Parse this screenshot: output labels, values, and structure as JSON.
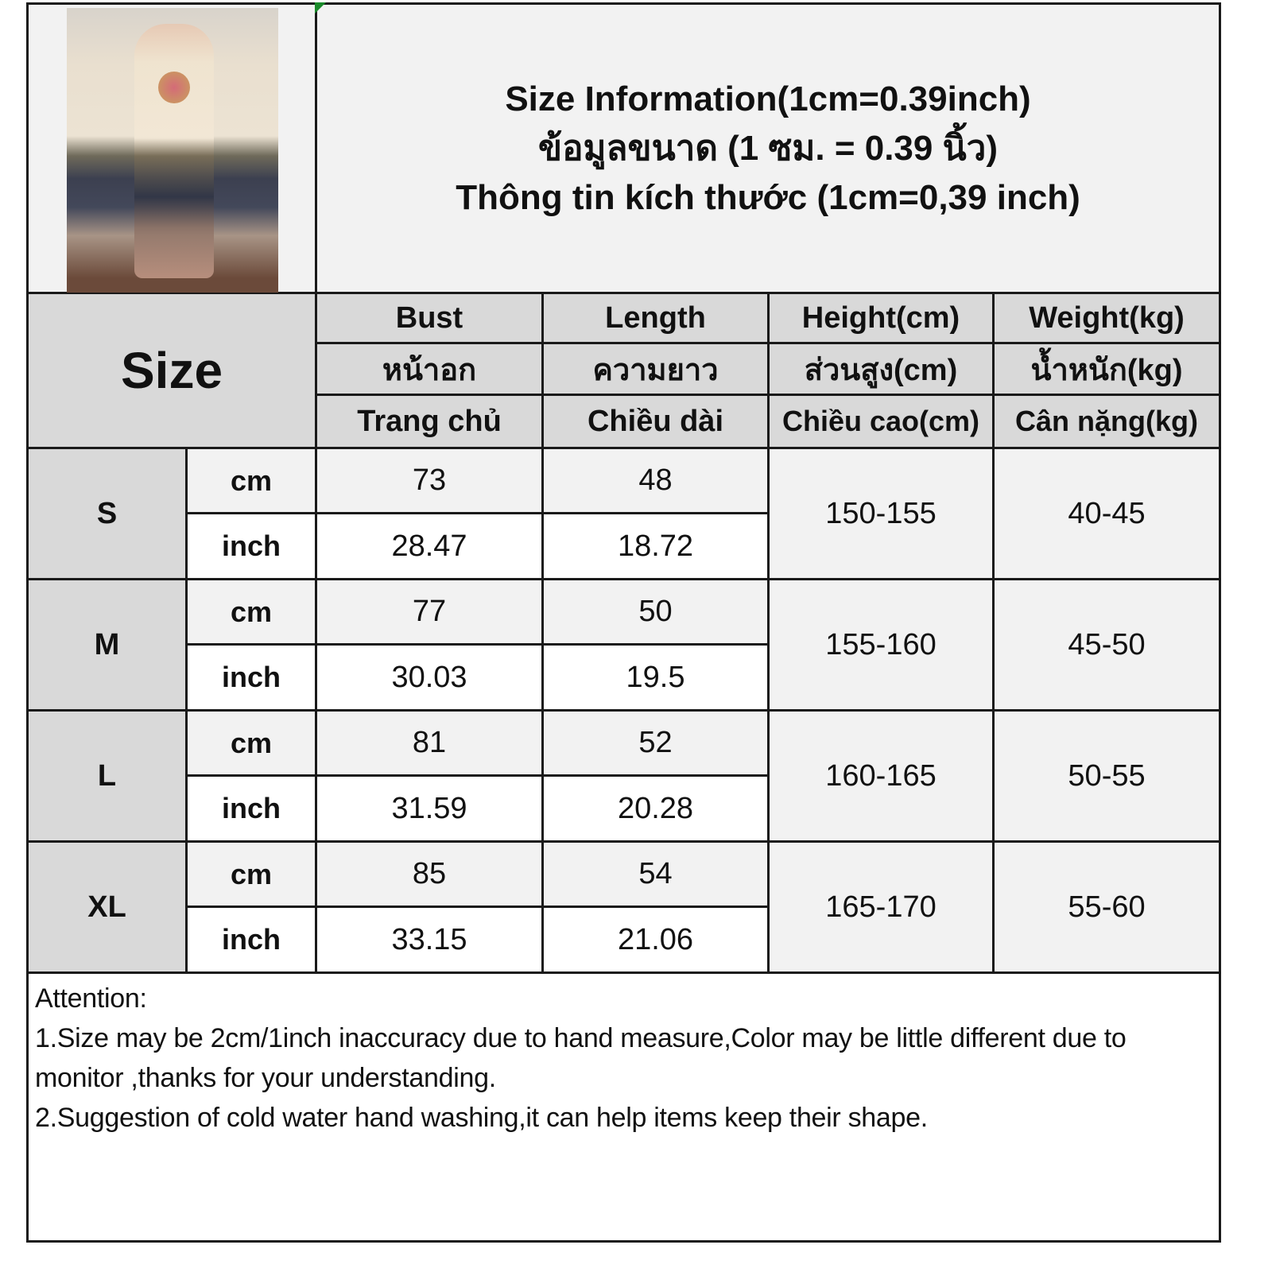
{
  "title_lines": [
    "Size Information(1cm=0.39inch)",
    "ข้อมูลขนาด (1 ซม. = 0.39 นิ้ว)",
    "Thông tin kích thước (1cm=0,39 inch)"
  ],
  "size_header": "Size",
  "columns": [
    {
      "en": "Bust",
      "th": "หน้าอก",
      "vi": "Trang chủ"
    },
    {
      "en": "Length",
      "th": "ความยาว",
      "vi": "Chiều dài"
    },
    {
      "en": "Height(cm)",
      "th": "ส่วนสูง(cm)",
      "vi": "Chiều cao(cm)"
    },
    {
      "en": "Weight(kg)",
      "th": "น้ำหนัก(kg)",
      "vi": "Cân nặng(kg)"
    }
  ],
  "units": {
    "cm": "cm",
    "inch": "inch"
  },
  "rows": [
    {
      "size": "S",
      "bust_cm": "73",
      "length_cm": "48",
      "bust_in": "28.47",
      "length_in": "18.72",
      "height": "150-155",
      "weight": "40-45"
    },
    {
      "size": "M",
      "bust_cm": "77",
      "length_cm": "50",
      "bust_in": "30.03",
      "length_in": "19.5",
      "height": "155-160",
      "weight": "45-50"
    },
    {
      "size": "L",
      "bust_cm": "81",
      "length_cm": "52",
      "bust_in": "31.59",
      "length_in": "20.28",
      "height": "160-165",
      "weight": "50-55"
    },
    {
      "size": "XL",
      "bust_cm": "85",
      "length_cm": "54",
      "bust_in": "33.15",
      "length_in": "21.06",
      "height": "165-170",
      "weight": "55-60"
    }
  ],
  "notes": {
    "heading": "Attention:",
    "line1": "1.Size may be 2cm/1inch inaccuracy due to hand measure,Color may be little different due to monitor ,thanks for your understanding.",
    "line2": "2.Suggestion of cold water hand washing,it can help items keep their shape."
  },
  "colors": {
    "header_gray": "#d9d9d9",
    "light_gray": "#f2f2f2",
    "border": "#1a1a1a"
  }
}
